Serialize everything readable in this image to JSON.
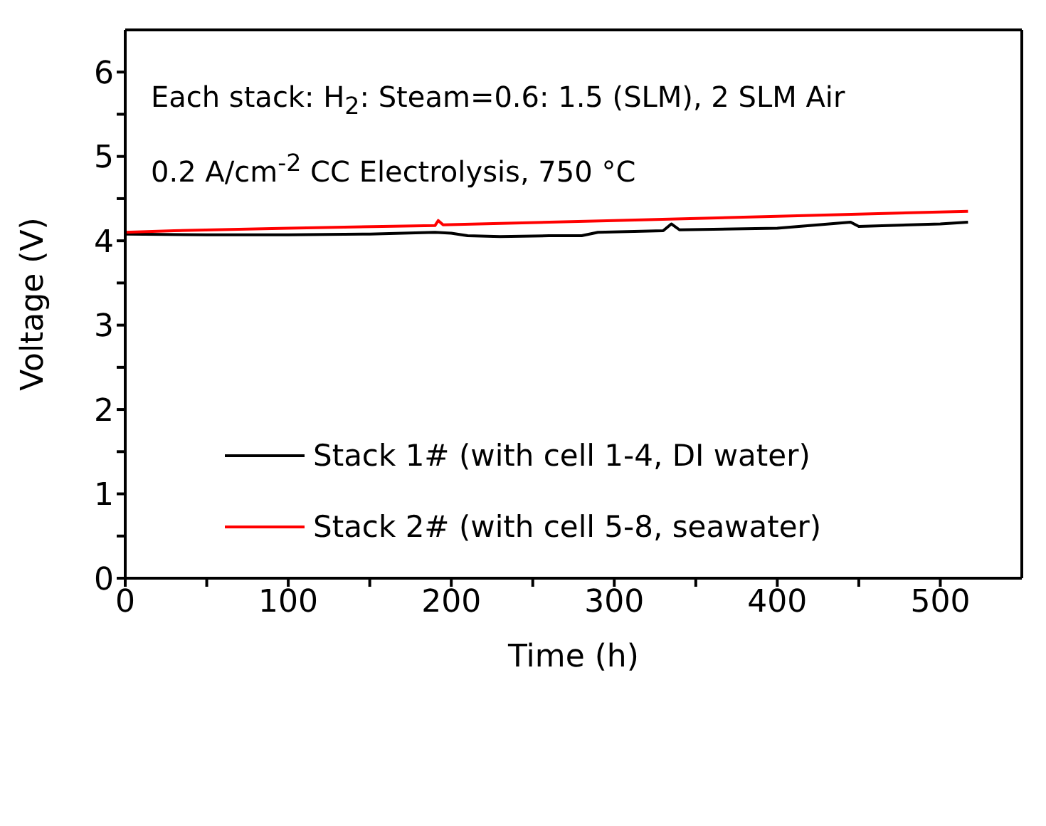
{
  "chart_data": {
    "type": "line",
    "xlabel": "Time (h)",
    "ylabel": "Voltage (V)",
    "xlim": [
      0,
      550
    ],
    "ylim": [
      0,
      6.5
    ],
    "xticks": [
      0,
      {
        "value": 50,
        "label": null
      },
      100,
      {
        "value": 150,
        "label": null
      },
      200,
      {
        "value": 250,
        "label": null
      },
      300,
      {
        "value": 350,
        "label": null
      },
      400,
      {
        "value": 450,
        "label": null
      },
      500
    ],
    "yticks": [
      0,
      {
        "value": 0.5,
        "label": null
      },
      1,
      {
        "value": 1.5,
        "label": null
      },
      2,
      {
        "value": 2.5,
        "label": null
      },
      3,
      {
        "value": 3.5,
        "label": null
      },
      4,
      {
        "value": 4.5,
        "label": null
      },
      5,
      {
        "value": 5.5,
        "label": null
      },
      6
    ],
    "annotations": [
      "Each stack: H$_{2}$: Steam=0.6: 1.5 (SLM), 2 SLM Air",
      "0.2 A/cm$^{-2}$ CC Electrolysis, 750 °C"
    ],
    "legend": "center left",
    "marker": "none",
    "line_style": "solid",
    "series": [
      {
        "name": "Stack 1# (with cell 1-4, DI water)",
        "color": "#000000",
        "x": [
          0,
          50,
          100,
          150,
          190,
          200,
          210,
          230,
          260,
          280,
          290,
          330,
          335,
          340,
          400,
          445,
          450,
          500,
          517
        ],
        "values": [
          4.08,
          4.07,
          4.07,
          4.08,
          4.1,
          4.09,
          4.06,
          4.05,
          4.06,
          4.06,
          4.1,
          4.12,
          4.2,
          4.13,
          4.15,
          4.22,
          4.17,
          4.2,
          4.22
        ]
      },
      {
        "name": "Stack 2# (with cell 5-8, seawater)",
        "color": "#ff0000",
        "x": [
          0,
          30,
          100,
          190,
          192,
          195,
          300,
          400,
          517
        ],
        "values": [
          4.1,
          4.12,
          4.15,
          4.18,
          4.24,
          4.19,
          4.24,
          4.29,
          4.35
        ]
      }
    ]
  }
}
